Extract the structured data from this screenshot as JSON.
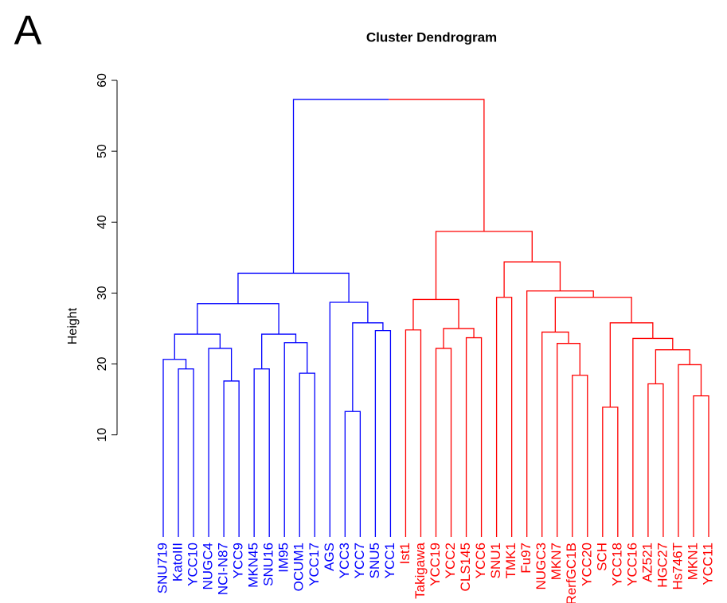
{
  "panel_label": "A",
  "chart_data": {
    "type": "dendrogram",
    "title": "Cluster Dendrogram",
    "y_label": "Height",
    "ylim": [
      -4.4,
      60
    ],
    "yticks": [
      10,
      20,
      30,
      40,
      50,
      60
    ],
    "tree": {
      "height": 57.3,
      "children": [
        {
          "color": "#0000ff",
          "height": 32.8,
          "children": [
            {
              "height": 28.5,
              "children": [
                {
                  "height": 24.2,
                  "children": [
                    {
                      "height": 20.65,
                      "children": [
                        {
                          "label": "SNU719"
                        },
                        {
                          "height": 19.3,
                          "children": [
                            {
                              "label": "KatoIII"
                            },
                            {
                              "label": "YCC10"
                            }
                          ]
                        }
                      ]
                    },
                    {
                      "height": 22.2,
                      "children": [
                        {
                          "label": "NUGC4"
                        },
                        {
                          "height": 17.6,
                          "children": [
                            {
                              "label": "NCI-N87"
                            },
                            {
                              "label": "YCC9"
                            }
                          ]
                        }
                      ]
                    }
                  ]
                },
                {
                  "height": 24.2,
                  "children": [
                    {
                      "height": 19.3,
                      "children": [
                        {
                          "label": "MKN45"
                        },
                        {
                          "label": "SNU16"
                        }
                      ]
                    },
                    {
                      "height": 23.0,
                      "children": [
                        {
                          "label": "IM95"
                        },
                        {
                          "height": 18.7,
                          "children": [
                            {
                              "label": "OCUM1"
                            },
                            {
                              "label": "YCC17"
                            }
                          ]
                        }
                      ]
                    }
                  ]
                }
              ]
            },
            {
              "height": 28.7,
              "children": [
                {
                  "label": "AGS"
                },
                {
                  "height": 25.8,
                  "children": [
                    {
                      "height": 13.3,
                      "children": [
                        {
                          "label": "YCC3"
                        },
                        {
                          "label": "YCC7"
                        }
                      ]
                    },
                    {
                      "height": 24.7,
                      "children": [
                        {
                          "label": "SNU5"
                        },
                        {
                          "label": "YCC1"
                        }
                      ]
                    }
                  ]
                }
              ]
            }
          ]
        },
        {
          "color": "#ff0000",
          "height": 38.7,
          "children": [
            {
              "height": 29.1,
              "children": [
                {
                  "height": 24.8,
                  "children": [
                    {
                      "label": "Ist1"
                    },
                    {
                      "label": "Takigawa"
                    }
                  ]
                },
                {
                  "height": 25.0,
                  "children": [
                    {
                      "height": 22.2,
                      "children": [
                        {
                          "label": "YCC19"
                        },
                        {
                          "label": "YCC2"
                        }
                      ]
                    },
                    {
                      "height": 23.7,
                      "children": [
                        {
                          "label": "CLS145"
                        },
                        {
                          "label": "YCC6"
                        }
                      ]
                    }
                  ]
                }
              ]
            },
            {
              "height": 34.4,
              "children": [
                {
                  "height": 29.4,
                  "children": [
                    {
                      "label": "SNU1"
                    },
                    {
                      "label": "TMK1"
                    }
                  ]
                },
                {
                  "height": 30.3,
                  "children": [
                    {
                      "label": "Fu97"
                    },
                    {
                      "height": 29.4,
                      "children": [
                        {
                          "height": 24.5,
                          "children": [
                            {
                              "label": "NUGC3"
                            },
                            {
                              "height": 22.9,
                              "children": [
                                {
                                  "label": "MKN7"
                                },
                                {
                                  "height": 18.4,
                                  "children": [
                                    {
                                      "label": "RerfGC1B"
                                    },
                                    {
                                      "label": "YCC20"
                                    }
                                  ]
                                }
                              ]
                            }
                          ]
                        },
                        {
                          "height": 25.8,
                          "children": [
                            {
                              "height": 13.9,
                              "children": [
                                {
                                  "label": "SCH"
                                },
                                {
                                  "label": "YCC18"
                                }
                              ]
                            },
                            {
                              "height": 23.6,
                              "children": [
                                {
                                  "label": "YCC16"
                                },
                                {
                                  "height": 22.0,
                                  "children": [
                                    {
                                      "height": 17.2,
                                      "children": [
                                        {
                                          "label": "AZ521"
                                        },
                                        {
                                          "label": "HGC27"
                                        }
                                      ]
                                    },
                                    {
                                      "height": 19.9,
                                      "children": [
                                        {
                                          "label": "Hs746T"
                                        },
                                        {
                                          "height": 15.5,
                                          "children": [
                                            {
                                              "label": "MKN1"
                                            },
                                            {
                                              "label": "YCC11"
                                            }
                                          ]
                                        }
                                      ]
                                    }
                                  ]
                                }
                              ]
                            }
                          ]
                        }
                      ]
                    }
                  ]
                }
              ]
            }
          ]
        }
      ]
    }
  }
}
